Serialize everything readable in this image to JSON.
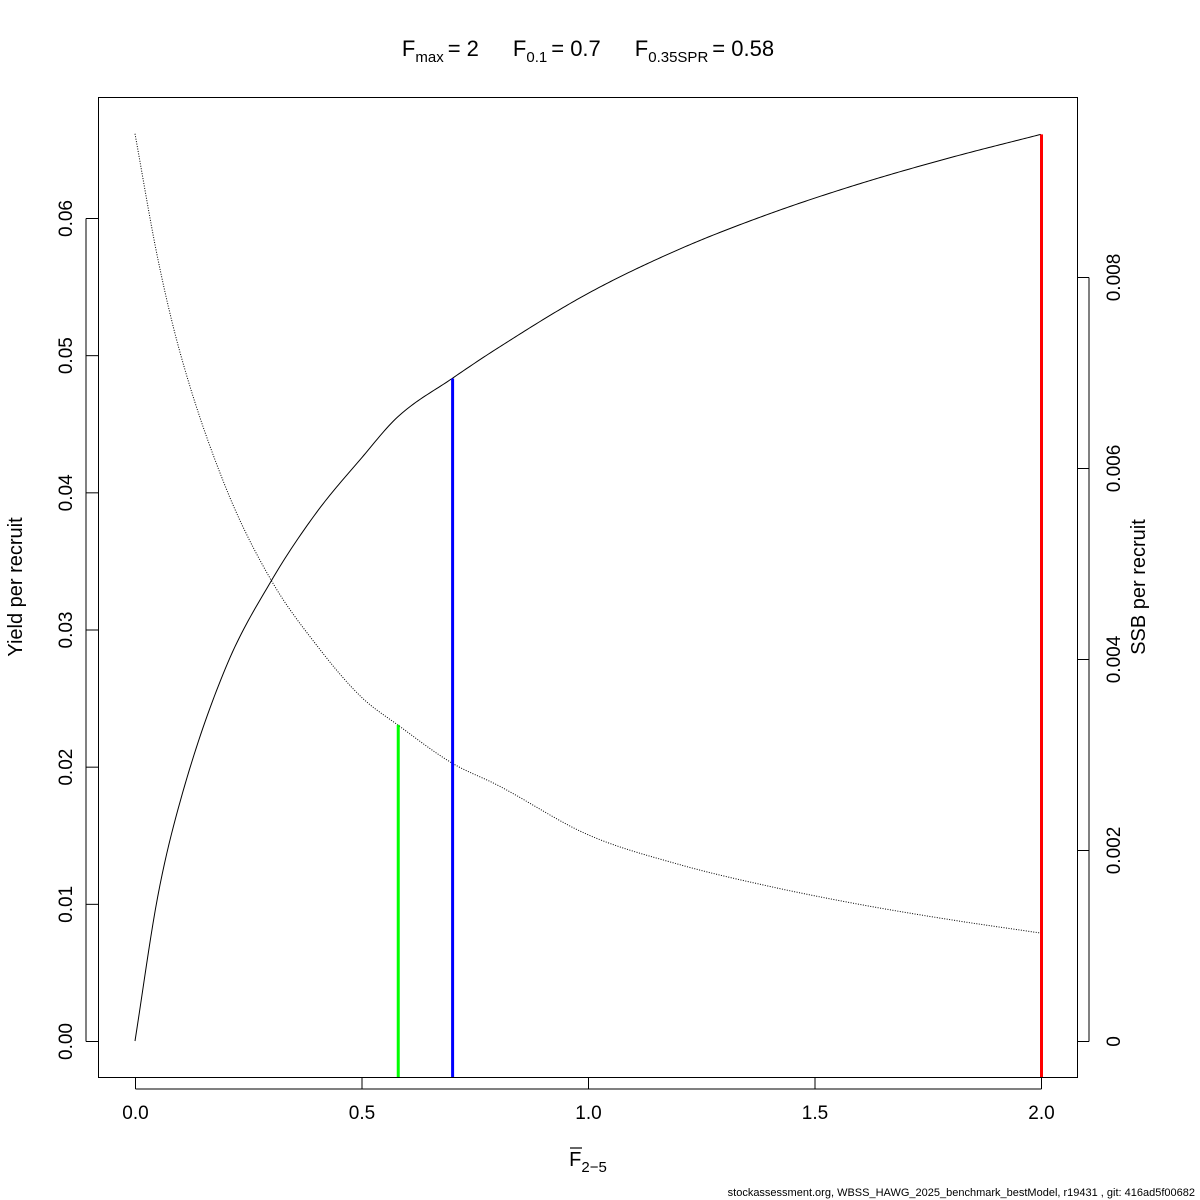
{
  "chart_data": {
    "type": "line",
    "title": {
      "parts": [
        {
          "main": "F",
          "sub": "max",
          "value": "= 2"
        },
        {
          "main": "F",
          "sub": "0.1",
          "value": "= 0.7"
        },
        {
          "main": "F",
          "sub": "0.35SPR",
          "value": "= 0.58"
        }
      ]
    },
    "xlabel": {
      "main": "F",
      "sub": "2−5",
      "overbar": true
    },
    "ylabel_left": "Yield per recruit",
    "ylabel_right": "SSB per recruit",
    "xlim": [
      0,
      2
    ],
    "ylim_left": [
      0,
      0.066
    ],
    "ylim_right": [
      0,
      0.0095
    ],
    "x_ticks": [
      "0.0",
      "0.5",
      "1.0",
      "1.5",
      "2.0"
    ],
    "x_tick_values": [
      0,
      0.5,
      1,
      1.5,
      2
    ],
    "y_left_ticks": [
      "0.00",
      "0.01",
      "0.02",
      "0.03",
      "0.04",
      "0.05",
      "0.06"
    ],
    "y_left_tick_values": [
      0,
      0.01,
      0.02,
      0.03,
      0.04,
      0.05,
      0.06
    ],
    "y_right_ticks": [
      "0",
      "0.002",
      "0.004",
      "0.006",
      "0.008"
    ],
    "y_right_tick_values": [
      0,
      0.002,
      0.004,
      0.006,
      0.008
    ],
    "grid": false,
    "x": [
      0,
      0.05,
      0.1,
      0.2,
      0.3,
      0.4,
      0.5,
      0.58,
      0.7,
      0.8,
      1.0,
      1.2,
      1.4,
      1.6,
      1.8,
      2.0
    ],
    "series": [
      {
        "axis": "left",
        "style": "solid",
        "color": "#000000",
        "values": [
          0,
          0.0105,
          0.0175,
          0.0272,
          0.0335,
          0.0385,
          0.0425,
          0.0455,
          0.0483,
          0.0505,
          0.0545,
          0.0577,
          0.0603,
          0.0625,
          0.0644,
          0.0661
        ]
      },
      {
        "axis": "right",
        "style": "dotted",
        "color": "#000000",
        "values": [
          0.0095,
          0.0082,
          0.0072,
          0.0058,
          0.00483,
          0.00415,
          0.0036,
          0.00331,
          0.00291,
          0.00268,
          0.00216,
          0.00185,
          0.00162,
          0.00143,
          0.00127,
          0.00113
        ]
      }
    ],
    "reference_lines": [
      {
        "label": "Fmax",
        "x": 2.0,
        "top_axis": "left",
        "top": 0.0661,
        "color": "#ff0000"
      },
      {
        "label": "F0.1",
        "x": 0.7,
        "top_axis": "left",
        "top": 0.0483,
        "color": "#0000ff"
      },
      {
        "label": "F0.35SPR",
        "x": 0.58,
        "top_axis": "right",
        "top": 0.00331,
        "color": "#00ff00"
      }
    ]
  },
  "footer": "stockassessment.org, WBSS_HAWG_2025_benchmark_bestModel, r19431 , git: 416ad5f00682"
}
